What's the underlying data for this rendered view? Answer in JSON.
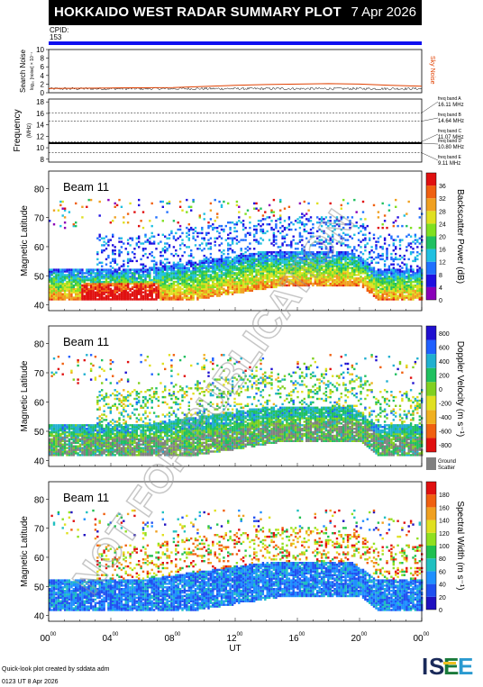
{
  "header": {
    "title": "HOKKAIDO WEST RADAR SUMMARY PLOT",
    "date": "7 Apr 2026"
  },
  "cpid": {
    "label": "CPID:",
    "value": "153"
  },
  "noise_panel": {
    "ylabel": "Search Noise",
    "ylabel_sub": "log₁₀ [noise]  × 10⁻¹",
    "yticks": [
      "0",
      "2",
      "4",
      "6",
      "8",
      "10"
    ],
    "legend": "Sky Noise"
  },
  "freq_panel": {
    "ylabel": "Frequency",
    "ylabel_sub": "(MHz)",
    "yticks": [
      "8",
      "10",
      "12",
      "14",
      "16",
      "18"
    ],
    "bands": [
      {
        "name": "freq band A",
        "value": "16.11 MHz"
      },
      {
        "name": "freq band B",
        "value": "14.64 MHz"
      },
      {
        "name": "freq band C",
        "value": "11.07 MHz"
      },
      {
        "name": "freq band D",
        "value": "10.80 MHz"
      },
      {
        "name": "freq band E",
        "value": "9.11 MHz"
      }
    ]
  },
  "panels": [
    {
      "beam": "Beam 11",
      "ylabel": "Magnetic Latitude",
      "yticks": [
        "40",
        "50",
        "60",
        "70",
        "80"
      ],
      "cbar_label": "Backscatter Power (dB)",
      "cbar_ticks": [
        "0",
        "4",
        "8",
        "12",
        "16",
        "20",
        "24",
        "28",
        "32",
        "36"
      ]
    },
    {
      "beam": "Beam 11",
      "ylabel": "Magnetic Latitude",
      "yticks": [
        "40",
        "50",
        "60",
        "70",
        "80"
      ],
      "cbar_label": "Doppler Velocity (m s⁻¹)",
      "cbar_ticks": [
        "-800",
        "-600",
        "-400",
        "-200",
        "0",
        "200",
        "400",
        "600",
        "800"
      ],
      "ground_label": "Ground",
      "ground_label2": "Scatter"
    },
    {
      "beam": "Beam 11",
      "ylabel": "Magnetic Latitude",
      "yticks": [
        "40",
        "50",
        "60",
        "70",
        "80"
      ],
      "cbar_label": "Spectral Width (m s⁻¹)",
      "cbar_ticks": [
        "0",
        "20",
        "40",
        "60",
        "80",
        "100",
        "120",
        "140",
        "160",
        "180"
      ]
    }
  ],
  "xaxis": {
    "label": "UT",
    "ticks": [
      "00",
      "04",
      "08",
      "12",
      "16",
      "20",
      "00"
    ],
    "tick_sup": "00"
  },
  "watermark": "NOT FOR PUBLICATION",
  "credits": {
    "line1": "Quick-look plot created by sddata adm",
    "line2": "0123 UT  8 Apr 2026"
  },
  "logo": {
    "text": "ISEE"
  },
  "colors": {
    "header_bg": "#000000",
    "cpid_bar": "#1010f0",
    "noise_line": "#e04000",
    "power_scale": [
      "#8a00b8",
      "#2010e0",
      "#2070ff",
      "#20c0e0",
      "#20c060",
      "#80e020",
      "#e0e020",
      "#f0a020",
      "#f06010",
      "#e01010"
    ],
    "velocity_scale": [
      "#e01010",
      "#f06010",
      "#f0b020",
      "#e0e020",
      "#80d020",
      "#20c060",
      "#20b0d0",
      "#2060ff",
      "#2010d0"
    ],
    "width_scale": [
      "#2010c0",
      "#2050f0",
      "#2090ff",
      "#20c0c0",
      "#20c050",
      "#90e020",
      "#e0e020",
      "#f0a020",
      "#f06010",
      "#e01010"
    ],
    "ground": "#808080"
  },
  "chart_data": [
    {
      "type": "line",
      "title": "Search Noise / Sky Noise",
      "xlabel": "UT",
      "ylim": [
        0,
        10
      ],
      "series": [
        {
          "name": "Sky Noise",
          "x": [
            0,
            4,
            8,
            12,
            14,
            16,
            18,
            20,
            22,
            24
          ],
          "y": [
            1.0,
            1.1,
            1.2,
            1.7,
            1.9,
            2.0,
            2.1,
            2.0,
            1.7,
            1.5
          ]
        }
      ]
    },
    {
      "type": "line",
      "title": "Frequency",
      "ylim": [
        7.5,
        18.5
      ],
      "series": [
        {
          "name": "freq band D",
          "x": [
            0,
            24
          ],
          "y": [
            10.8,
            10.8
          ]
        }
      ]
    },
    {
      "type": "heatmap",
      "title": "Backscatter Power (dB)",
      "xlabel": "UT",
      "ylabel": "Magnetic Latitude",
      "xlim": [
        0,
        24
      ],
      "ylim": [
        38,
        86
      ],
      "zlim": [
        0,
        36
      ],
      "regions": [
        {
          "ut": [
            0,
            24
          ],
          "mlat": [
            43,
            52
          ],
          "dB": 10
        },
        {
          "ut": [
            2,
            6
          ],
          "mlat": [
            44,
            46
          ],
          "dB": 28
        },
        {
          "ut": [
            14,
            20
          ],
          "mlat": [
            56,
            66
          ],
          "dB": 6
        }
      ]
    },
    {
      "type": "heatmap",
      "title": "Doppler Velocity (m s⁻¹)",
      "xlabel": "UT",
      "ylabel": "Magnetic Latitude",
      "xlim": [
        0,
        24
      ],
      "ylim": [
        38,
        86
      ],
      "zlim": [
        -800,
        800
      ]
    },
    {
      "type": "heatmap",
      "title": "Spectral Width (m s⁻¹)",
      "xlabel": "UT",
      "ylabel": "Magnetic Latitude",
      "xlim": [
        0,
        24
      ],
      "ylim": [
        38,
        86
      ],
      "zlim": [
        0,
        190
      ]
    }
  ]
}
